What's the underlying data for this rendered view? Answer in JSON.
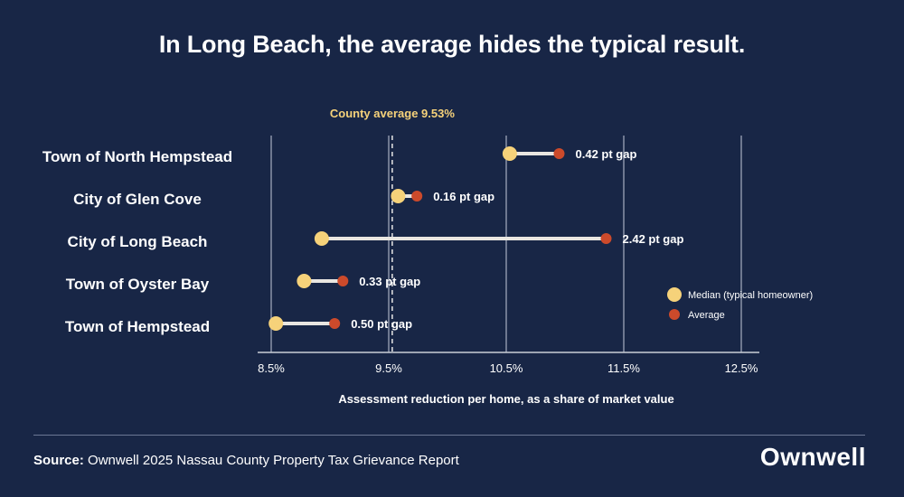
{
  "title": "In Long Beach, the average hides the typical result.",
  "source": {
    "label": "Source:",
    "text": "Ownwell 2025 Nassau County Property Tax Grievance Report"
  },
  "logo_text": "Ownwell",
  "colors": {
    "background": "#182646",
    "median": "#f6d27a",
    "average": "#cc4a2b",
    "connector": "#e9e6e1",
    "grid": "#8a93a8",
    "county_line": "#e6e6e6",
    "county_label": "#f6d27a"
  },
  "chart_data": {
    "type": "dumbbell",
    "title": "In Long Beach, the average hides the typical result.",
    "xlabel": "Assessment reduction per home, as a share of market value",
    "ylabel": "",
    "xlim": [
      8.5,
      12.5
    ],
    "xticks": [
      8.5,
      9.5,
      10.5,
      11.5,
      12.5
    ],
    "xtick_labels": [
      "8.5%",
      "9.5%",
      "10.5%",
      "11.5%",
      "12.5%"
    ],
    "grid": true,
    "reference_line": {
      "value": 9.53,
      "label": "County average 9.53%"
    },
    "legend": {
      "position": "right",
      "entries": [
        "Median (typical homeowner)",
        "Average"
      ]
    },
    "categories": [
      "Town of North Hempstead",
      "City of Glen Cove",
      "City of Long Beach",
      "Town of Oyster Bay",
      "Town of Hempstead"
    ],
    "series": [
      {
        "name": "Median (typical homeowner)",
        "values": [
          10.53,
          9.58,
          8.93,
          8.78,
          8.54
        ]
      },
      {
        "name": "Average",
        "values": [
          10.95,
          9.74,
          11.35,
          9.11,
          9.04
        ]
      }
    ],
    "gap_labels": [
      "0.42 pt gap",
      "0.16 pt gap",
      "2.42 pt gap",
      "0.33 pt gap",
      "0.50 pt gap"
    ]
  }
}
